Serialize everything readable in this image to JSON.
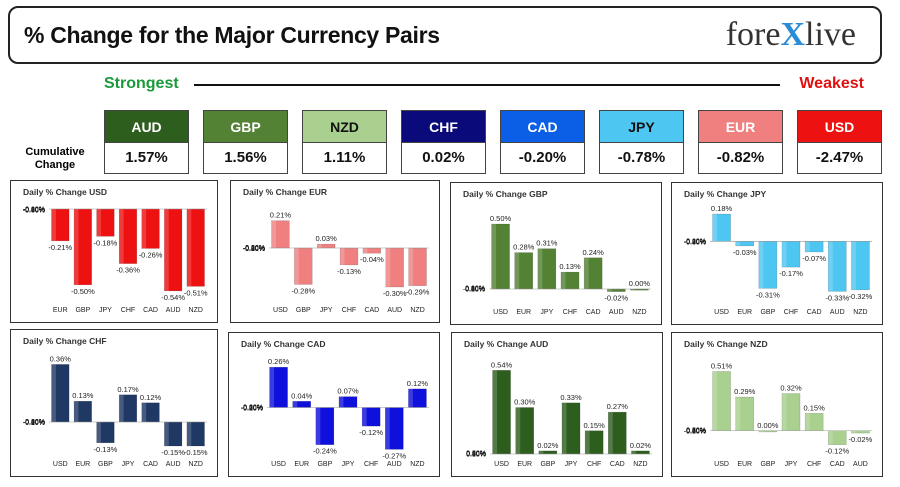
{
  "header": {
    "title": "% Change for the Major Currency Pairs",
    "logo_prefix": "fore",
    "logo_x": "X",
    "logo_suffix": "live"
  },
  "strongest_label": "Strongest",
  "weakest_label": "Weakest",
  "cumulative_label": "Cumulative Change",
  "cumulative": [
    {
      "currency": "AUD",
      "value": "1.57%",
      "color": "#2e5e1e",
      "text": "#ffffff"
    },
    {
      "currency": "GBP",
      "value": "1.56%",
      "color": "#548235",
      "text": "#ffffff"
    },
    {
      "currency": "NZD",
      "value": "1.11%",
      "color": "#a9d08e",
      "text": "#111111"
    },
    {
      "currency": "CHF",
      "value": "0.02%",
      "color": "#0a0a7a",
      "text": "#ffffff"
    },
    {
      "currency": "CAD",
      "value": "-0.20%",
      "color": "#0b5ee6",
      "text": "#ffffff"
    },
    {
      "currency": "JPY",
      "value": "-0.78%",
      "color": "#4ec6f2",
      "text": "#111111"
    },
    {
      "currency": "EUR",
      "value": "-0.82%",
      "color": "#f08080",
      "text": "#ffffff"
    },
    {
      "currency": "USD",
      "value": "-2.47%",
      "color": "#ee1111",
      "text": "#ffffff"
    }
  ],
  "chart_data": [
    {
      "type": "bar",
      "title": "Daily % Change USD",
      "categories": [
        "EUR",
        "GBP",
        "JPY",
        "CHF",
        "CAD",
        "AUD",
        "NZD"
      ],
      "values": [
        -0.21,
        -0.5,
        -0.18,
        -0.36,
        -0.26,
        -0.54,
        -0.51
      ],
      "labels": [
        "-0.21%",
        "-0.50%",
        "-0.18%",
        "-0.36%",
        "-0.26%",
        "-0.54%",
        "-0.51%"
      ],
      "ylim": [
        -0.6,
        0.0
      ],
      "yticks": [
        "0.00%",
        "-0.10%",
        "-0.20%",
        "-0.30%",
        "-0.40%",
        "-0.50%",
        "-0.60%"
      ],
      "color": "#ee1111"
    },
    {
      "type": "bar",
      "title": "Daily % Change EUR",
      "categories": [
        "USD",
        "GBP",
        "JPY",
        "CHF",
        "CAD",
        "AUD",
        "NZD"
      ],
      "values": [
        0.21,
        -0.28,
        0.03,
        -0.13,
        -0.04,
        -0.3,
        -0.29
      ],
      "labels": [
        "0.21%",
        "-0.28%",
        "0.03%",
        "-0.13%",
        "-0.04%",
        "-0.30%",
        "-0.29%"
      ],
      "ylim": [
        -0.4,
        0.3
      ],
      "yticks": [
        "0.30%",
        "0.20%",
        "0.10%",
        "0.00%",
        "-0.10%",
        "-0.20%",
        "-0.30%",
        "-0.40%"
      ],
      "color": "#f08080"
    },
    {
      "type": "bar",
      "title": "Daily % Change GBP",
      "categories": [
        "USD",
        "EUR",
        "JPY",
        "CHF",
        "CAD",
        "AUD",
        "NZD"
      ],
      "values": [
        0.5,
        0.28,
        0.31,
        0.13,
        0.24,
        -0.02,
        0.0
      ],
      "labels": [
        "0.50%",
        "0.28%",
        "0.31%",
        "0.13%",
        "0.24%",
        "-0.02%",
        "0.00%"
      ],
      "ylim": [
        -0.1,
        0.6
      ],
      "yticks": [
        "0.60%",
        "0.50%",
        "0.40%",
        "0.30%",
        "0.20%",
        "0.10%",
        "0.00%",
        "-0.10%"
      ],
      "color": "#548235"
    },
    {
      "type": "bar",
      "title": "Daily % Change JPY",
      "categories": [
        "USD",
        "EUR",
        "GBP",
        "CHF",
        "CAD",
        "AUD",
        "NZD"
      ],
      "values": [
        0.18,
        -0.03,
        -0.31,
        -0.17,
        -0.07,
        -0.33,
        -0.32
      ],
      "labels": [
        "0.18%",
        "-0.03%",
        "-0.31%",
        "-0.17%",
        "-0.07%",
        "-0.33%",
        "-0.32%"
      ],
      "ylim": [
        -0.4,
        0.2
      ],
      "yticks": [
        "0.20%",
        "0.10%",
        "0.00%",
        "-0.10%",
        "-0.20%",
        "-0.30%",
        "-0.40%"
      ],
      "color": "#4ec6f2"
    },
    {
      "type": "bar",
      "title": "Daily % Change CHF",
      "categories": [
        "USD",
        "EUR",
        "GBP",
        "JPY",
        "CAD",
        "AUD",
        "NZD"
      ],
      "values": [
        0.36,
        0.13,
        -0.13,
        0.17,
        0.12,
        -0.15,
        -0.15
      ],
      "labels": [
        "0.36%",
        "0.13%",
        "-0.13%",
        "0.17%",
        "0.12%",
        "-0.15%",
        "-0.15%"
      ],
      "ylim": [
        -0.2,
        0.4
      ],
      "yticks": [
        "0.40%",
        "0.30%",
        "0.20%",
        "0.10%",
        "0.00%",
        "-0.10%",
        "-0.20%"
      ],
      "color": "#1f3864"
    },
    {
      "type": "bar",
      "title": "Daily % Change CAD",
      "categories": [
        "USD",
        "EUR",
        "GBP",
        "JPY",
        "CHF",
        "AUD",
        "NZD"
      ],
      "values": [
        0.26,
        0.04,
        -0.24,
        0.07,
        -0.12,
        -0.27,
        0.12
      ],
      "labels": [
        "0.26%",
        "0.04%",
        "-0.24%",
        "0.07%",
        "-0.12%",
        "-0.27%",
        "0.12%"
      ],
      "ylim": [
        -0.3,
        0.3
      ],
      "yticks": [
        "0.30%",
        "0.20%",
        "0.10%",
        "0.00%",
        "-0.10%",
        "-0.20%",
        "-0.30%"
      ],
      "color": "#1010dd"
    },
    {
      "type": "bar",
      "title": "Daily % Change AUD",
      "categories": [
        "USD",
        "EUR",
        "GBP",
        "JPY",
        "CHF",
        "CAD",
        "NZD"
      ],
      "values": [
        0.54,
        0.3,
        0.02,
        0.33,
        0.15,
        0.27,
        0.02
      ],
      "labels": [
        "0.54%",
        "0.30%",
        "0.02%",
        "0.33%",
        "0.15%",
        "0.27%",
        "0.02%"
      ],
      "ylim": [
        0.0,
        0.6
      ],
      "yticks": [
        "0.60%",
        "0.50%",
        "0.40%",
        "0.30%",
        "0.20%",
        "0.10%",
        "0.00%"
      ],
      "color": "#2e5e1e"
    },
    {
      "type": "bar",
      "title": "Daily % Change NZD",
      "categories": [
        "USD",
        "EUR",
        "GBP",
        "JPY",
        "CHF",
        "CAD",
        "AUD"
      ],
      "values": [
        0.51,
        0.29,
        0.0,
        0.32,
        0.15,
        -0.12,
        -0.02
      ],
      "labels": [
        "0.51%",
        "0.29%",
        "0.00%",
        "0.32%",
        "0.15%",
        "-0.12%",
        "-0.02%"
      ],
      "ylim": [
        -0.2,
        0.6
      ],
      "yticks": [
        "0.60%",
        "0.50%",
        "0.40%",
        "0.30%",
        "0.20%",
        "0.10%",
        "0.00%",
        "-0.10%",
        "-0.20%"
      ],
      "color": "#a9d08e"
    }
  ]
}
